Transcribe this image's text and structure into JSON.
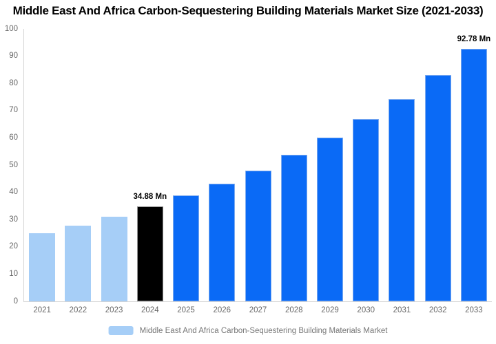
{
  "title": "Middle East And Africa Carbon-Sequestering Building Materials Market Size (2021-2033)",
  "colors": {
    "historical_fill": "#A6CEF7",
    "historical_border": "#A6CEF7",
    "current_fill": "#000000",
    "current_border": "#919191",
    "forecast_fill": "#0A6AF6",
    "forecast_border": "#7FACEF",
    "axis_line": "#d4d4d4",
    "tick_text": "#666666",
    "legend_text": "#777777"
  },
  "chart_data": {
    "type": "bar",
    "title": "Middle East And Africa Carbon-Sequestering Building Materials Market Size (2021-2033)",
    "xlabel": "",
    "ylabel": "",
    "ylim": [
      0,
      100
    ],
    "ytick_step": 10,
    "yticks": [
      0,
      10,
      20,
      30,
      40,
      50,
      60,
      70,
      80,
      90,
      100
    ],
    "grid": false,
    "categories": [
      "2021",
      "2022",
      "2023",
      "2024",
      "2025",
      "2026",
      "2027",
      "2028",
      "2029",
      "2030",
      "2031",
      "2032",
      "2033"
    ],
    "values": [
      25.0,
      27.8,
      31.0,
      34.88,
      38.8,
      43.2,
      48.0,
      53.7,
      60.0,
      66.8,
      74.3,
      83.0,
      92.78
    ],
    "bar_roles": [
      "historical",
      "historical",
      "historical",
      "current",
      "forecast",
      "forecast",
      "forecast",
      "forecast",
      "forecast",
      "forecast",
      "forecast",
      "forecast",
      "forecast"
    ],
    "annotations": [
      {
        "category": "2024",
        "text": "34.88 Mn"
      },
      {
        "category": "2033",
        "text": "92.78 Mn"
      }
    ],
    "legend_position": "bottom",
    "legend": {
      "label": "Middle East And Africa Carbon-Sequestering Building Materials Market",
      "swatch_color": "#A6CEF7"
    }
  }
}
